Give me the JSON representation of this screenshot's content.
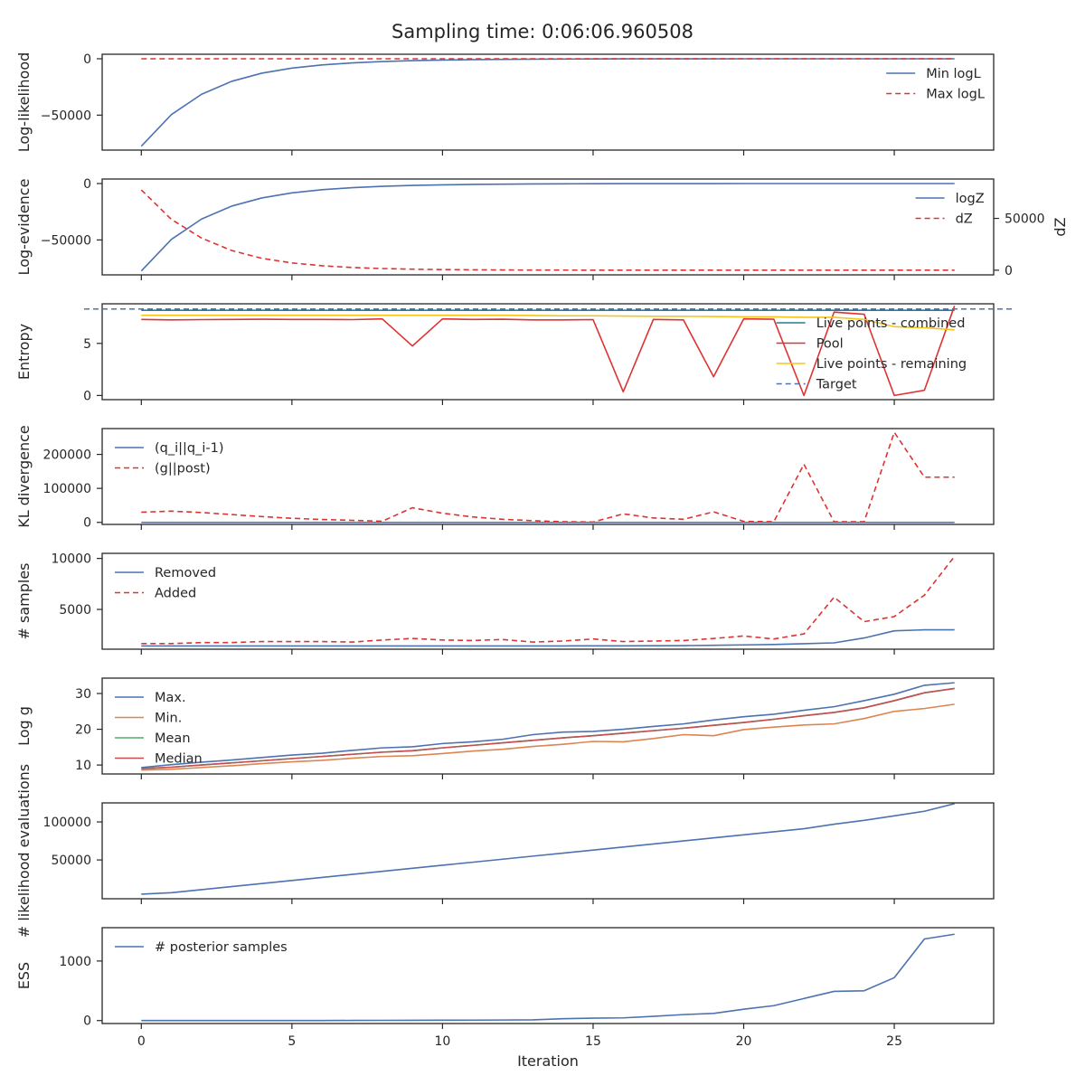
{
  "chart_data": {
    "type": "line",
    "title": "Sampling time: 0:06:06.960508",
    "xlabel": "Iteration",
    "x_ticks": [
      0,
      5,
      10,
      15,
      20,
      25
    ],
    "xlim": [
      -1.3,
      28.3
    ],
    "x": [
      0,
      1,
      2,
      3,
      4,
      5,
      6,
      7,
      8,
      9,
      10,
      11,
      12,
      13,
      14,
      15,
      16,
      17,
      18,
      19,
      20,
      21,
      22,
      23,
      24,
      25,
      26,
      27
    ],
    "colors": {
      "blue": "#4c72b0",
      "red": "#dd3333",
      "orange": "#dd8452",
      "green": "#55a868",
      "crimson": "#c44e52",
      "gold": "#f5c518",
      "teal": "#2a7b8f"
    },
    "panels": [
      {
        "id": "loglike",
        "ylabel": "Log-likelihood",
        "ylim": [
          -81000,
          4000
        ],
        "yticks": [
          0,
          -50000
        ],
        "ytick_labels": [
          "0",
          "−50000"
        ],
        "legend": "upper-right",
        "series": [
          {
            "name": "Min logL",
            "color": "#4c72b0",
            "dash": false,
            "values": [
              -77500,
              -49500,
              -31500,
              -20000,
              -12800,
              -8300,
              -5500,
              -3700,
              -2500,
              -1700,
              -1150,
              -780,
              -520,
              -350,
              -230,
              -150,
              -100,
              -65,
              -40,
              -25,
              -15,
              -10,
              -6,
              -4,
              -2,
              -1,
              -1,
              0
            ]
          },
          {
            "name": "Max logL",
            "color": "#dd3333",
            "dash": true,
            "values": [
              0,
              0,
              0,
              0,
              0,
              0,
              0,
              0,
              0,
              0,
              0,
              0,
              0,
              0,
              0,
              0,
              0,
              0,
              0,
              0,
              0,
              0,
              0,
              0,
              0,
              0,
              0,
              0
            ]
          }
        ]
      },
      {
        "id": "logz",
        "ylabel": "Log-evidence",
        "ylabel2": "dZ",
        "ylim": [
          -81000,
          4000
        ],
        "yticks": [
          0,
          -50000
        ],
        "ytick_labels": [
          "0",
          "−50000"
        ],
        "ylim2": [
          -4500,
          88000
        ],
        "yticks2": [
          0,
          50000
        ],
        "ytick2_labels": [
          "0",
          "50000"
        ],
        "legend": "upper-right",
        "series": [
          {
            "name": "logZ",
            "color": "#4c72b0",
            "dash": false,
            "axis": 1,
            "values": [
              -77500,
              -49500,
              -31500,
              -20000,
              -12800,
              -8300,
              -5500,
              -3700,
              -2500,
              -1700,
              -1150,
              -780,
              -520,
              -350,
              -230,
              -150,
              -100,
              -65,
              -40,
              -25,
              -15,
              -10,
              -6,
              -4,
              -2,
              -1,
              -1,
              0
            ]
          },
          {
            "name": "dZ",
            "color": "#dd3333",
            "dash": true,
            "axis": 2,
            "values": [
              77500,
              49000,
              31000,
              19000,
              11500,
              7000,
              4300,
              2600,
              1600,
              1000,
              600,
              380,
              230,
              140,
              90,
              55,
              35,
              20,
              12,
              8,
              5,
              3,
              2,
              1,
              1,
              0,
              0,
              0
            ]
          }
        ]
      },
      {
        "id": "entropy",
        "ylabel": "Entropy",
        "ylim": [
          -0.4,
          8.8
        ],
        "yticks": [
          0,
          5
        ],
        "ytick_labels": [
          "0",
          "5"
        ],
        "legend": "upper-right",
        "series": [
          {
            "name": "Live points - combined",
            "color": "#2a7b8f",
            "dash": false,
            "values": [
              8.18,
              8.18,
              8.18,
              8.18,
              8.18,
              8.18,
              8.18,
              8.18,
              8.18,
              8.18,
              8.18,
              8.18,
              8.18,
              8.18,
              8.18,
              8.18,
              8.18,
              8.18,
              8.18,
              8.18,
              8.18,
              8.18,
              8.18,
              8.18,
              8.18,
              8.18,
              8.18,
              8.18
            ]
          },
          {
            "name": "Pool",
            "color": "#dd3333",
            "dash": false,
            "values": [
              7.3,
              7.25,
              7.28,
              7.3,
              7.32,
              7.3,
              7.3,
              7.28,
              7.35,
              4.75,
              7.35,
              7.3,
              7.32,
              7.25,
              7.25,
              7.28,
              0.35,
              7.3,
              7.25,
              1.8,
              7.35,
              7.32,
              0.0,
              8.0,
              7.8,
              0.0,
              0.5,
              8.6
            ]
          },
          {
            "name": "Live points - remaining",
            "color": "#f5c518",
            "dash": false,
            "values": [
              7.7,
              7.7,
              7.7,
              7.7,
              7.7,
              7.7,
              7.7,
              7.7,
              7.7,
              7.7,
              7.7,
              7.7,
              7.7,
              7.68,
              7.65,
              7.65,
              7.62,
              7.6,
              7.6,
              7.58,
              7.55,
              7.55,
              7.5,
              7.5,
              7.3,
              6.6,
              6.5,
              6.3
            ]
          },
          {
            "name": "Target",
            "color": "#4c72b0",
            "dash": true,
            "hline": 8.3
          }
        ]
      },
      {
        "id": "kl",
        "ylabel": "KL divergence",
        "ylim": [
          -6000,
          276000
        ],
        "yticks": [
          0,
          100000,
          200000
        ],
        "ytick_labels": [
          "0",
          "100000",
          "200000"
        ],
        "legend": "upper-left",
        "series": [
          {
            "name": "(q_i||q_i-1)",
            "color": "#4c72b0",
            "dash": false,
            "values": [
              0,
              0,
              0,
              0,
              0,
              0,
              0,
              0,
              0,
              0,
              0,
              0,
              0,
              0,
              0,
              0,
              0,
              0,
              0,
              0,
              0,
              0,
              0,
              0,
              0,
              0,
              0,
              0
            ]
          },
          {
            "name": "(g||post)",
            "color": "#dd3333",
            "dash": true,
            "values": [
              30000,
              33000,
              29000,
              23000,
              17000,
              12000,
              8500,
              6000,
              3500,
              43000,
              27000,
              16000,
              9000,
              5000,
              2000,
              1000,
              25000,
              13000,
              9000,
              31000,
              3000,
              2000,
              171000,
              2000,
              2000,
              265000,
              133000,
              133000
            ]
          }
        ]
      },
      {
        "id": "samples",
        "ylabel": "# samples",
        "ylim": [
          1100,
          10500
        ],
        "yticks": [
          5000,
          10000
        ],
        "ytick_labels": [
          "5000",
          "10000"
        ],
        "legend": "upper-left",
        "series": [
          {
            "name": "Removed",
            "color": "#4c72b0",
            "dash": false,
            "values": [
              1420,
              1420,
              1420,
              1420,
              1420,
              1420,
              1420,
              1420,
              1420,
              1420,
              1420,
              1420,
              1420,
              1420,
              1420,
              1430,
              1430,
              1440,
              1450,
              1480,
              1520,
              1560,
              1640,
              1720,
              2200,
              2900,
              3000,
              3000
            ]
          },
          {
            "name": "Added",
            "color": "#dd3333",
            "dash": true,
            "values": [
              1650,
              1650,
              1750,
              1750,
              1850,
              1850,
              1850,
              1800,
              2000,
              2150,
              2000,
              1950,
              2050,
              1800,
              1900,
              2100,
              1850,
              1900,
              1950,
              2150,
              2400,
              2100,
              2600,
              6200,
              3800,
              4300,
              6400,
              10200
            ]
          }
        ]
      },
      {
        "id": "logg",
        "ylabel": "Log g",
        "ylim": [
          7.5,
          34.3
        ],
        "yticks": [
          10,
          20,
          30
        ],
        "ytick_labels": [
          "10",
          "20",
          "30"
        ],
        "legend": "upper-left",
        "series": [
          {
            "name": "Max.",
            "color": "#4c72b0",
            "dash": false,
            "values": [
              9.3,
              10.1,
              10.8,
              11.4,
              12.1,
              12.8,
              13.3,
              14.1,
              14.8,
              15.1,
              16.0,
              16.5,
              17.2,
              18.5,
              19.2,
              19.4,
              20.0,
              20.8,
              21.5,
              22.6,
              23.5,
              24.2,
              25.3,
              26.3,
              28.0,
              29.8,
              32.3,
              33.0
            ]
          },
          {
            "name": "Min.",
            "color": "#dd8452",
            "dash": false,
            "values": [
              8.6,
              8.8,
              9.3,
              9.8,
              10.4,
              10.9,
              11.3,
              11.9,
              12.4,
              12.6,
              13.2,
              13.9,
              14.4,
              15.2,
              15.8,
              16.6,
              16.5,
              17.4,
              18.5,
              18.2,
              19.9,
              20.6,
              21.2,
              21.5,
              23.0,
              25.0,
              25.8,
              27.0
            ]
          },
          {
            "name": "Mean",
            "color": "#55a868",
            "dash": false,
            "values": [
              9.0,
              9.4,
              10.0,
              10.6,
              11.2,
              11.8,
              12.4,
              13.0,
              13.6,
              14.0,
              14.8,
              15.5,
              16.2,
              16.9,
              17.6,
              18.2,
              18.9,
              19.6,
              20.3,
              21.1,
              21.9,
              22.8,
              23.8,
              24.7,
              26.0,
              28.0,
              30.2,
              31.4
            ]
          },
          {
            "name": "Median",
            "color": "#c44e52",
            "dash": false,
            "values": [
              9.0,
              9.4,
              10.0,
              10.6,
              11.2,
              11.8,
              12.4,
              13.0,
              13.6,
              14.0,
              14.8,
              15.5,
              16.2,
              16.9,
              17.6,
              18.2,
              18.9,
              19.6,
              20.3,
              21.1,
              21.9,
              22.8,
              23.8,
              24.7,
              26.0,
              28.0,
              30.2,
              31.4
            ]
          }
        ]
      },
      {
        "id": "likeevals",
        "ylabel": "# likelihood evaluations",
        "ylim": [
          -1000,
          125000
        ],
        "yticks": [
          50000,
          100000
        ],
        "ytick_labels": [
          "50000",
          "100000"
        ],
        "legend": "none",
        "series": [
          {
            "name": "",
            "color": "#4c72b0",
            "dash": false,
            "values": [
              5000,
              7000,
              11000,
              15000,
              19000,
              23000,
              27000,
              31000,
              35000,
              39000,
              43000,
              47000,
              51000,
              55000,
              59000,
              63000,
              67000,
              71000,
              75000,
              79000,
              83000,
              87000,
              91000,
              97000,
              102000,
              108000,
              114000,
              124000
            ]
          }
        ]
      },
      {
        "id": "ess",
        "ylabel": "ESS",
        "ylim": [
          -50,
          1560
        ],
        "yticks": [
          0,
          1000
        ],
        "ytick_labels": [
          "0",
          "1000"
        ],
        "legend": "upper-left",
        "series": [
          {
            "name": "# posterior samples",
            "color": "#4c72b0",
            "dash": false,
            "values": [
              0,
              0,
              0,
              0,
              0,
              0,
              0,
              2,
              3,
              4,
              6,
              7,
              9,
              12,
              30,
              40,
              45,
              70,
              100,
              120,
              190,
              250,
              370,
              490,
              500,
              720,
              1370,
              1450
            ]
          }
        ]
      }
    ]
  }
}
